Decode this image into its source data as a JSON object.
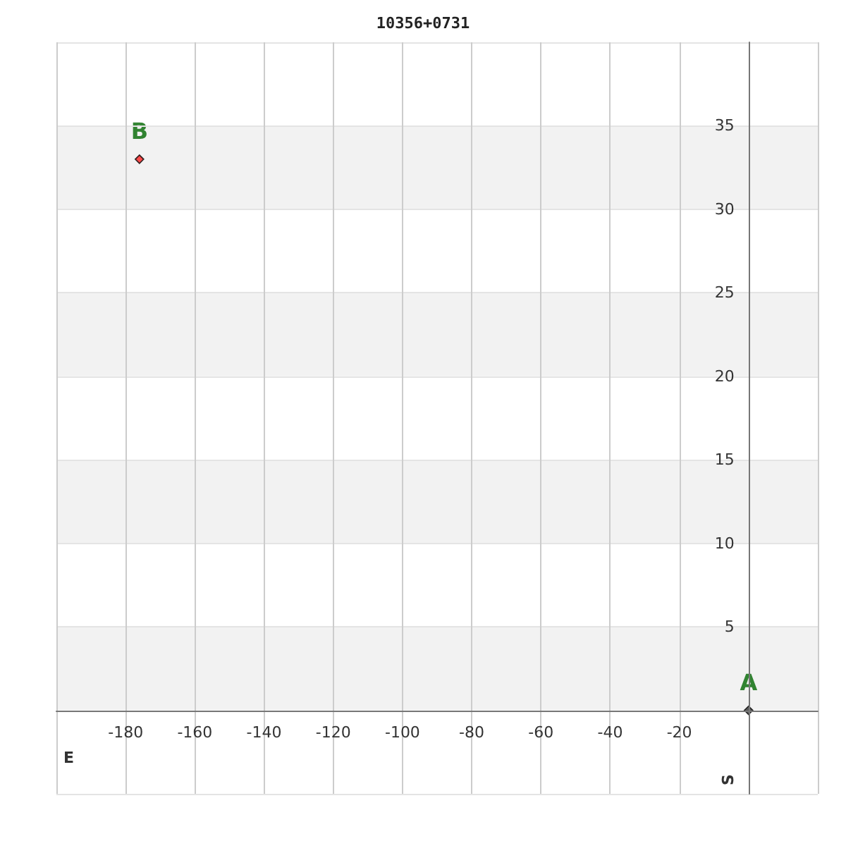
{
  "chart_data": {
    "type": "scatter",
    "title": "10356+0731",
    "xlabel": "E",
    "ylabel": "S",
    "x": [
      0,
      -176
    ],
    "series": [
      {
        "values": [
          0,
          33
        ],
        "colors": [
          "#333333",
          "#ff2222"
        ]
      }
    ],
    "marker": "diamond",
    "xlim": [
      -200,
      20
    ],
    "xticks": [
      -180,
      -160,
      -140,
      -120,
      -100,
      -80,
      -60,
      -40,
      -20
    ],
    "ylim": [
      -5,
      40
    ],
    "yticks": [
      5,
      10,
      15,
      20,
      25,
      30,
      35
    ],
    "grid": true,
    "bands": [
      {
        "axis": "y",
        "from": 0,
        "to": 5,
        "color": "#f2f2f2"
      },
      {
        "axis": "y",
        "from": 10,
        "to": 15,
        "color": "#f2f2f2"
      },
      {
        "axis": "y",
        "from": 20,
        "to": 25,
        "color": "#f2f2f2"
      },
      {
        "axis": "y",
        "from": 30,
        "to": 35,
        "color": "#f2f2f2"
      }
    ],
    "annotations": [
      {
        "text": "A",
        "x": 0,
        "y": 0
      },
      {
        "text": "B",
        "x": -176,
        "y": 33
      }
    ]
  }
}
